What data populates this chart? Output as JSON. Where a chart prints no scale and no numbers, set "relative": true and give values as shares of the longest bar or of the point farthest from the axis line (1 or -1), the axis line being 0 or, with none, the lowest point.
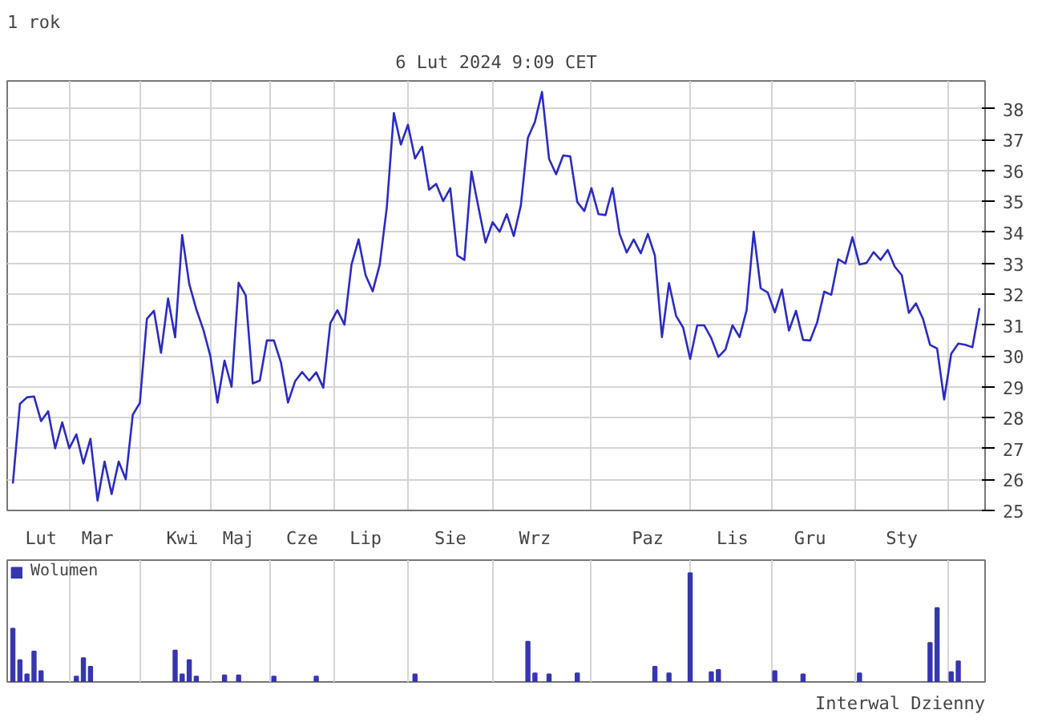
{
  "chart_data": [
    {
      "type": "line",
      "title": "1 rok",
      "subtitle": "6 Lut 2024 9:09 CET",
      "color": "#2b2bc4",
      "grid": true,
      "ylim": [
        25,
        38.9
      ],
      "yticks": [
        25,
        26,
        27,
        28,
        29,
        30,
        31,
        32,
        33,
        34,
        35,
        36,
        37,
        38
      ],
      "categories": [
        null,
        null,
        null,
        null,
        "Lut",
        null,
        null,
        null,
        null,
        null,
        null,
        null,
        "Mar",
        null,
        null,
        null,
        null,
        null,
        null,
        null,
        null,
        null,
        null,
        null,
        "Kwi",
        null,
        null,
        null,
        null,
        null,
        null,
        null,
        "Maj",
        null,
        null,
        null,
        null,
        null,
        null,
        null,
        null,
        "Cze",
        null,
        null,
        null,
        null,
        null,
        null,
        null,
        null,
        "Lip",
        null,
        null,
        null,
        null,
        null,
        null,
        null,
        null,
        null,
        null,
        null,
        "Sie",
        null,
        null,
        null,
        null,
        null,
        null,
        null,
        null,
        null,
        null,
        null,
        "Wrz",
        null,
        null,
        null,
        null,
        null,
        null,
        null,
        null,
        null,
        null,
        null,
        null,
        null,
        null,
        null,
        "Paz",
        null,
        null,
        null,
        null,
        null,
        null,
        null,
        null,
        null,
        null,
        null,
        "Lis",
        null,
        null,
        null,
        null,
        null,
        null,
        null,
        null,
        null,
        null,
        "Gru",
        null,
        null,
        null,
        null,
        null,
        null,
        null,
        null,
        null,
        null,
        null,
        null,
        "Sty",
        null,
        null,
        null,
        null,
        null,
        null,
        null,
        null,
        null,
        null,
        null
      ],
      "values": [
        25.87,
        28.45,
        28.66,
        28.69,
        27.89,
        28.21,
        27.01,
        27.85,
        27.01,
        27.46,
        26.52,
        27.32,
        25.32,
        26.58,
        25.53,
        26.58,
        26.01,
        28.1,
        28.48,
        31.2,
        31.46,
        30.1,
        31.86,
        30.6,
        33.91,
        32.33,
        31.51,
        30.85,
        29.99,
        28.49,
        29.85,
        29.0,
        32.37,
        31.96,
        29.11,
        29.2,
        30.5,
        30.5,
        29.79,
        28.49,
        29.18,
        29.48,
        29.2,
        29.47,
        28.97,
        31.06,
        31.48,
        31.01,
        32.96,
        33.77,
        32.61,
        32.09,
        32.96,
        34.8,
        37.86,
        36.84,
        37.48,
        36.39,
        36.77,
        35.38,
        35.57,
        35.01,
        35.43,
        33.25,
        33.11,
        35.97,
        34.8,
        33.67,
        34.33,
        34.02,
        34.59,
        33.88,
        34.87,
        37.06,
        37.58,
        38.54,
        36.38,
        35.88,
        36.49,
        36.46,
        34.98,
        34.69,
        35.43,
        34.59,
        34.56,
        35.43,
        33.95,
        33.35,
        33.77,
        33.32,
        33.95,
        33.25,
        30.61,
        32.36,
        31.3,
        30.92,
        29.9,
        30.99,
        30.99,
        30.57,
        29.97,
        30.21,
        30.99,
        30.61,
        31.48,
        34.02,
        32.19,
        32.05,
        31.41,
        32.15,
        30.82,
        31.46,
        30.52,
        30.5,
        31.09,
        32.08,
        31.98,
        33.13,
        32.99,
        33.84,
        32.96,
        33.01,
        33.36,
        33.11,
        33.43,
        32.89,
        32.61,
        31.39,
        31.7,
        31.2,
        30.36,
        30.24,
        28.59,
        30.07,
        30.4,
        30.36,
        30.28,
        31.55
      ]
    },
    {
      "type": "bar",
      "relative": true,
      "legend": "top left",
      "grid": "x",
      "tick_labels": false,
      "annotations": [
        "Interwal Dzienny"
      ],
      "categories": [
        null,
        null,
        null,
        null,
        null,
        null,
        null,
        null,
        null,
        null,
        null,
        null,
        null,
        null,
        null,
        null,
        null,
        null,
        null,
        null,
        null,
        null,
        null,
        null,
        null,
        null,
        null,
        null,
        null,
        null,
        null,
        null,
        null,
        null,
        null,
        null,
        null,
        null,
        null,
        null,
        null,
        null,
        null,
        null,
        null,
        null,
        null,
        null,
        null,
        null,
        null,
        null,
        null,
        null,
        null,
        null,
        null,
        null,
        null,
        null,
        null,
        null,
        null,
        null,
        null,
        null,
        null,
        null,
        null,
        null,
        null,
        null,
        null,
        null,
        null,
        null,
        null,
        null,
        null,
        null,
        null,
        null,
        null,
        null,
        null,
        null,
        null,
        null,
        null,
        null,
        null,
        null,
        null,
        null,
        null,
        null,
        null,
        null,
        null,
        null,
        null,
        null,
        null,
        null,
        null,
        null,
        null,
        null,
        null,
        null,
        null,
        null,
        null,
        null,
        null,
        null,
        null,
        null,
        null,
        null,
        null,
        null,
        null,
        null,
        null,
        null,
        null,
        null,
        null,
        null,
        null,
        null,
        null,
        null,
        null,
        null,
        null,
        null
      ],
      "series": [
        {
          "name": "Wolumen",
          "color": "#3636b0",
          "values": [
            0.49,
            0.2,
            0.07,
            0.28,
            0.1,
            null,
            null,
            null,
            null,
            0.05,
            0.22,
            0.14,
            null,
            null,
            null,
            null,
            null,
            null,
            null,
            null,
            null,
            null,
            null,
            0.29,
            0.07,
            0.2,
            0.05,
            null,
            null,
            null,
            0.06,
            null,
            0.06,
            null,
            null,
            null,
            null,
            0.05,
            null,
            null,
            null,
            null,
            null,
            0.05,
            null,
            null,
            null,
            null,
            null,
            null,
            null,
            null,
            null,
            null,
            null,
            null,
            null,
            0.07,
            null,
            null,
            null,
            null,
            null,
            null,
            null,
            null,
            null,
            null,
            null,
            null,
            null,
            null,
            null,
            0.37,
            0.08,
            null,
            0.07,
            null,
            null,
            null,
            0.08,
            null,
            null,
            null,
            null,
            null,
            null,
            null,
            null,
            null,
            null,
            0.14,
            null,
            0.08,
            null,
            null,
            1,
            null,
            null,
            0.09,
            0.11,
            null,
            null,
            null,
            null,
            null,
            null,
            null,
            0.1,
            null,
            null,
            null,
            0.07,
            null,
            null,
            null,
            null,
            null,
            null,
            null,
            0.08,
            null,
            null,
            null,
            null,
            null,
            null,
            null,
            null,
            null,
            0.36,
            0.68,
            null,
            0.09,
            0.19,
            null,
            null,
            null
          ]
        }
      ]
    }
  ]
}
